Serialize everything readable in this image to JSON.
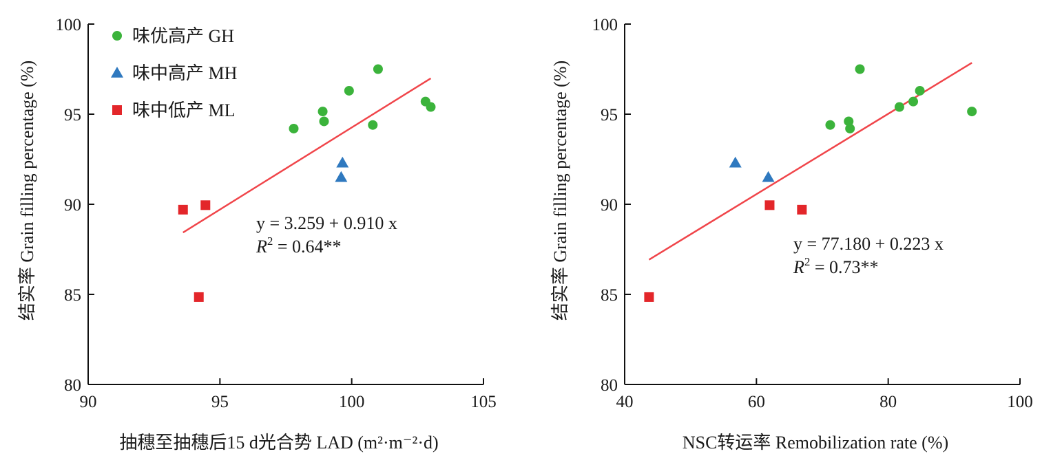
{
  "legend": {
    "placement": "top-left",
    "entries": [
      {
        "label": "味优高产 GH",
        "marker": "circle-icon",
        "color": "#3bb33b"
      },
      {
        "label": "味中高产 MH",
        "marker": "triangle-icon",
        "color": "#2f79bf"
      },
      {
        "label": "味中低产 ML",
        "marker": "square-icon",
        "color": "#e3262a"
      }
    ]
  },
  "chart_data": [
    {
      "type": "scatter",
      "xlabel": "抽穗至抽穗后15 d光合势 LAD (m²·m⁻²·d)",
      "ylabel": "结实率 Grain filling percentage (%)",
      "xlim": [
        90,
        105
      ],
      "ylim": [
        80,
        100
      ],
      "xticks": [
        90,
        95,
        100,
        105
      ],
      "yticks": [
        80,
        85,
        90,
        95,
        100
      ],
      "xtick_labels": [
        "90",
        "95",
        "100",
        "105"
      ],
      "ytick_labels": [
        "80",
        "85",
        "90",
        "95",
        "100"
      ],
      "grid": false,
      "series": [
        {
          "name": "味优高产 GH",
          "marker": "circle",
          "color": "#3bb33b",
          "points": [
            [
              97.8,
              94.2
            ],
            [
              98.9,
              95.15
            ],
            [
              98.95,
              94.6
            ],
            [
              99.9,
              96.3
            ],
            [
              100.8,
              94.4
            ],
            [
              101.0,
              97.5
            ],
            [
              102.8,
              95.7
            ],
            [
              103.0,
              95.4
            ]
          ]
        },
        {
          "name": "味中高产 MH",
          "marker": "triangle",
          "color": "#2f79bf",
          "points": [
            [
              99.6,
              91.5
            ],
            [
              99.65,
              92.3
            ]
          ]
        },
        {
          "name": "味中低产 ML",
          "marker": "square",
          "color": "#e3262a",
          "points": [
            [
              93.6,
              89.7
            ],
            [
              94.45,
              89.95
            ],
            [
              94.2,
              84.85
            ]
          ]
        }
      ],
      "fit": {
        "intercept": 3.259,
        "slope": 0.91,
        "x_range": [
          93.6,
          103.0
        ],
        "color": "#f0454a"
      },
      "equation": "y = 3.259 + 0.910 x",
      "r2_prefix": "R",
      "r2_value": " = 0.64**"
    },
    {
      "type": "scatter",
      "xlabel": "NSC转运率 Remobilization rate (%)",
      "ylabel": "结实率 Grain filling percentage (%)",
      "xlim": [
        40,
        100
      ],
      "ylim": [
        80,
        100
      ],
      "xticks": [
        40,
        60,
        80,
        100
      ],
      "yticks": [
        80,
        85,
        90,
        95,
        100
      ],
      "xtick_labels": [
        "40",
        "60",
        "80",
        "100"
      ],
      "ytick_labels": [
        "80",
        "85",
        "90",
        "95",
        "100"
      ],
      "grid": false,
      "series": [
        {
          "name": "味优高产 GH",
          "marker": "circle",
          "color": "#3bb33b",
          "points": [
            [
              71.2,
              94.4
            ],
            [
              74.0,
              94.6
            ],
            [
              74.2,
              94.2
            ],
            [
              75.7,
              97.5
            ],
            [
              81.7,
              95.4
            ],
            [
              83.8,
              95.7
            ],
            [
              84.8,
              96.3
            ],
            [
              92.7,
              95.15
            ]
          ]
        },
        {
          "name": "味中高产 MH",
          "marker": "triangle",
          "color": "#2f79bf",
          "points": [
            [
              56.8,
              92.3
            ],
            [
              61.8,
              91.5
            ]
          ]
        },
        {
          "name": "味中低产 ML",
          "marker": "square",
          "color": "#e3262a",
          "points": [
            [
              43.7,
              84.85
            ],
            [
              62.0,
              89.95
            ],
            [
              66.9,
              89.7
            ]
          ]
        }
      ],
      "fit": {
        "intercept": 77.18,
        "slope": 0.223,
        "x_range": [
          43.7,
          92.7
        ],
        "color": "#f0454a"
      },
      "equation": "y = 77.180 + 0.223 x",
      "r2_prefix": "R",
      "r2_value": " = 0.73**"
    }
  ]
}
